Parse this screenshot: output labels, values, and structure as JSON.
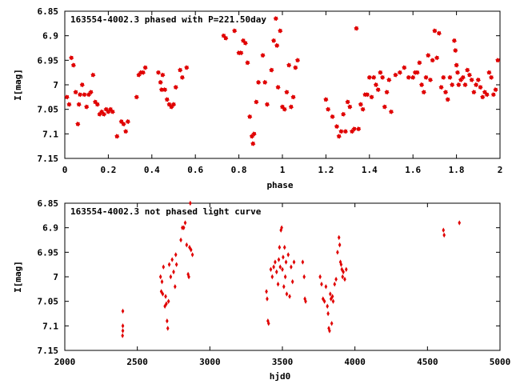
{
  "chart_data": [
    {
      "type": "scatter",
      "title": "163554-4002.3 phased with P=221.50day",
      "xlabel": "phase",
      "ylabel": "I[mag]",
      "xlim": [
        0,
        2
      ],
      "ylim": [
        7.15,
        6.85
      ],
      "y_inverted": true,
      "grid": false,
      "marker": "star",
      "color": "#e00000",
      "x_ticks": [
        "0",
        "0.2",
        "0.4",
        "0.6",
        "0.8",
        "1",
        "1.2",
        "1.4",
        "1.6",
        "1.8",
        "2"
      ],
      "y_ticks": [
        "6.85",
        "6.9",
        "6.95",
        "7",
        "7.05",
        "7.1",
        "7.15"
      ],
      "x_tick_values": [
        0,
        0.2,
        0.4,
        0.6,
        0.8,
        1.0,
        1.2,
        1.4,
        1.6,
        1.8,
        2.0
      ],
      "y_tick_values": [
        6.85,
        6.9,
        6.95,
        7.0,
        7.05,
        7.1,
        7.15
      ],
      "points": [
        [
          0.01,
          7.025
        ],
        [
          0.02,
          7.04
        ],
        [
          0.03,
          6.945
        ],
        [
          0.04,
          6.96
        ],
        [
          0.05,
          7.015
        ],
        [
          0.06,
          7.08
        ],
        [
          0.065,
          7.04
        ],
        [
          0.07,
          7.02
        ],
        [
          0.08,
          7.0
        ],
        [
          0.09,
          7.02
        ],
        [
          0.1,
          7.045
        ],
        [
          0.11,
          7.02
        ],
        [
          0.12,
          7.015
        ],
        [
          0.13,
          6.98
        ],
        [
          0.14,
          7.035
        ],
        [
          0.15,
          7.04
        ],
        [
          0.16,
          7.06
        ],
        [
          0.17,
          7.055
        ],
        [
          0.18,
          7.06
        ],
        [
          0.19,
          7.05
        ],
        [
          0.2,
          7.055
        ],
        [
          0.21,
          7.05
        ],
        [
          0.22,
          7.055
        ],
        [
          0.24,
          7.105
        ],
        [
          0.26,
          7.075
        ],
        [
          0.27,
          7.08
        ],
        [
          0.28,
          7.095
        ],
        [
          0.29,
          7.075
        ],
        [
          0.33,
          7.025
        ],
        [
          0.34,
          6.98
        ],
        [
          0.35,
          6.975
        ],
        [
          0.36,
          6.975
        ],
        [
          0.37,
          6.965
        ],
        [
          0.43,
          6.975
        ],
        [
          0.44,
          6.995
        ],
        [
          0.445,
          7.01
        ],
        [
          0.45,
          6.98
        ],
        [
          0.46,
          7.01
        ],
        [
          0.47,
          7.03
        ],
        [
          0.48,
          7.04
        ],
        [
          0.49,
          7.045
        ],
        [
          0.5,
          7.04
        ],
        [
          0.51,
          7.005
        ],
        [
          0.53,
          6.97
        ],
        [
          0.54,
          6.985
        ],
        [
          0.56,
          6.965
        ],
        [
          0.73,
          6.9
        ],
        [
          0.74,
          6.905
        ],
        [
          0.78,
          6.89
        ],
        [
          0.8,
          6.935
        ],
        [
          0.81,
          6.935
        ],
        [
          0.82,
          6.91
        ],
        [
          0.83,
          6.915
        ],
        [
          0.84,
          6.955
        ],
        [
          0.85,
          7.065
        ],
        [
          0.86,
          7.105
        ],
        [
          0.865,
          7.12
        ],
        [
          0.87,
          7.1
        ],
        [
          0.88,
          7.035
        ],
        [
          0.89,
          6.995
        ],
        [
          0.91,
          6.94
        ],
        [
          0.92,
          6.995
        ],
        [
          0.93,
          7.04
        ],
        [
          0.95,
          6.97
        ],
        [
          0.96,
          6.91
        ],
        [
          0.97,
          6.865
        ],
        [
          0.975,
          6.92
        ],
        [
          0.98,
          7.005
        ],
        [
          0.99,
          6.89
        ],
        [
          1.0,
          7.045
        ],
        [
          1.01,
          7.05
        ],
        [
          1.02,
          7.015
        ],
        [
          1.03,
          6.96
        ],
        [
          1.04,
          7.045
        ],
        [
          1.05,
          7.025
        ],
        [
          1.06,
          6.965
        ],
        [
          1.07,
          6.95
        ],
        [
          1.2,
          7.03
        ],
        [
          1.21,
          7.05
        ],
        [
          1.23,
          7.065
        ],
        [
          1.25,
          7.085
        ],
        [
          1.26,
          7.105
        ],
        [
          1.27,
          7.095
        ],
        [
          1.28,
          7.06
        ],
        [
          1.29,
          7.095
        ],
        [
          1.3,
          7.035
        ],
        [
          1.31,
          7.045
        ],
        [
          1.32,
          7.095
        ],
        [
          1.33,
          7.09
        ],
        [
          1.34,
          6.885
        ],
        [
          1.35,
          7.09
        ],
        [
          1.36,
          7.04
        ],
        [
          1.37,
          7.05
        ],
        [
          1.38,
          7.02
        ],
        [
          1.39,
          7.02
        ],
        [
          1.4,
          6.985
        ],
        [
          1.41,
          7.025
        ],
        [
          1.42,
          6.985
        ],
        [
          1.43,
          7.0
        ],
        [
          1.44,
          7.01
        ],
        [
          1.45,
          6.975
        ],
        [
          1.46,
          6.985
        ],
        [
          1.47,
          7.045
        ],
        [
          1.48,
          7.015
        ],
        [
          1.49,
          6.99
        ],
        [
          1.5,
          7.055
        ],
        [
          1.52,
          6.98
        ],
        [
          1.54,
          6.975
        ],
        [
          1.56,
          6.965
        ],
        [
          1.58,
          6.985
        ],
        [
          1.6,
          6.985
        ],
        [
          1.61,
          6.975
        ],
        [
          1.62,
          6.975
        ],
        [
          1.63,
          6.955
        ],
        [
          1.64,
          7.0
        ],
        [
          1.65,
          7.015
        ],
        [
          1.66,
          6.985
        ],
        [
          1.67,
          6.94
        ],
        [
          1.68,
          6.99
        ],
        [
          1.69,
          6.95
        ],
        [
          1.7,
          6.89
        ],
        [
          1.71,
          6.945
        ],
        [
          1.72,
          6.895
        ],
        [
          1.73,
          7.005
        ],
        [
          1.74,
          6.985
        ],
        [
          1.75,
          7.015
        ],
        [
          1.76,
          7.03
        ],
        [
          1.77,
          6.985
        ],
        [
          1.78,
          7.0
        ],
        [
          1.79,
          6.91
        ],
        [
          1.795,
          6.93
        ],
        [
          1.8,
          6.96
        ],
        [
          1.805,
          6.975
        ],
        [
          1.81,
          7.0
        ],
        [
          1.82,
          6.99
        ],
        [
          1.83,
          6.985
        ],
        [
          1.84,
          7.0
        ],
        [
          1.85,
          6.97
        ],
        [
          1.86,
          6.98
        ],
        [
          1.87,
          6.99
        ],
        [
          1.88,
          7.015
        ],
        [
          1.89,
          7.0
        ],
        [
          1.9,
          6.99
        ],
        [
          1.91,
          7.005
        ],
        [
          1.92,
          7.025
        ],
        [
          1.93,
          7.015
        ],
        [
          1.94,
          7.02
        ],
        [
          1.95,
          6.975
        ],
        [
          1.96,
          6.985
        ],
        [
          1.97,
          7.02
        ],
        [
          1.98,
          7.01
        ],
        [
          1.99,
          6.95
        ]
      ]
    },
    {
      "type": "scatter",
      "title": "163554-4002.3 not phased light curve",
      "xlabel": "hjd0",
      "ylabel": "I[mag]",
      "xlim": [
        2000,
        5000
      ],
      "ylim": [
        7.15,
        6.85
      ],
      "y_inverted": true,
      "grid": false,
      "marker": "diamond",
      "color": "#e00000",
      "x_ticks": [
        "2000",
        "2500",
        "3000",
        "3500",
        "4000",
        "4500",
        "5000"
      ],
      "y_ticks": [
        "6.85",
        "6.9",
        "6.95",
        "7",
        "7.05",
        "7.1",
        "7.15"
      ],
      "x_tick_values": [
        2000,
        2500,
        3000,
        3500,
        4000,
        4500,
        5000
      ],
      "y_tick_values": [
        6.85,
        6.9,
        6.95,
        7.0,
        7.05,
        7.1,
        7.15
      ],
      "points": [
        [
          2400,
          7.07
        ],
        [
          2400,
          7.1
        ],
        [
          2400,
          7.11
        ],
        [
          2398,
          7.12
        ],
        [
          2660,
          7.0
        ],
        [
          2665,
          7.03
        ],
        [
          2670,
          7.01
        ],
        [
          2675,
          7.035
        ],
        [
          2680,
          6.98
        ],
        [
          2690,
          7.06
        ],
        [
          2695,
          7.04
        ],
        [
          2700,
          7.055
        ],
        [
          2705,
          7.09
        ],
        [
          2710,
          7.105
        ],
        [
          2715,
          7.05
        ],
        [
          2720,
          6.975
        ],
        [
          2730,
          7.0
        ],
        [
          2740,
          6.965
        ],
        [
          2750,
          6.99
        ],
        [
          2760,
          7.02
        ],
        [
          2765,
          6.955
        ],
        [
          2770,
          6.975
        ],
        [
          2800,
          6.925
        ],
        [
          2810,
          6.9
        ],
        [
          2820,
          6.9
        ],
        [
          2830,
          6.89
        ],
        [
          2840,
          6.935
        ],
        [
          2850,
          6.995
        ],
        [
          2855,
          7.0
        ],
        [
          2860,
          6.94
        ],
        [
          2865,
          6.85
        ],
        [
          2870,
          6.945
        ],
        [
          2880,
          6.955
        ],
        [
          3390,
          7.03
        ],
        [
          3395,
          7.045
        ],
        [
          3400,
          7.09
        ],
        [
          3405,
          7.095
        ],
        [
          3420,
          6.985
        ],
        [
          3430,
          7.0
        ],
        [
          3440,
          6.98
        ],
        [
          3450,
          6.97
        ],
        [
          3460,
          6.99
        ],
        [
          3470,
          7.015
        ],
        [
          3475,
          6.965
        ],
        [
          3480,
          6.94
        ],
        [
          3485,
          6.98
        ],
        [
          3490,
          6.905
        ],
        [
          3495,
          6.9
        ],
        [
          3500,
          6.985
        ],
        [
          3505,
          6.96
        ],
        [
          3510,
          7.02
        ],
        [
          3515,
          6.94
        ],
        [
          3520,
          7.0
        ],
        [
          3525,
          6.97
        ],
        [
          3530,
          7.035
        ],
        [
          3540,
          6.955
        ],
        [
          3550,
          7.04
        ],
        [
          3560,
          6.98
        ],
        [
          3570,
          7.01
        ],
        [
          3580,
          6.97
        ],
        [
          3640,
          6.97
        ],
        [
          3650,
          7.0
        ],
        [
          3655,
          7.045
        ],
        [
          3660,
          7.05
        ],
        [
          3760,
          7.0
        ],
        [
          3770,
          7.015
        ],
        [
          3780,
          7.045
        ],
        [
          3790,
          7.05
        ],
        [
          3800,
          7.02
        ],
        [
          3810,
          7.06
        ],
        [
          3815,
          7.075
        ],
        [
          3820,
          7.105
        ],
        [
          3825,
          7.11
        ],
        [
          3830,
          7.035
        ],
        [
          3835,
          7.045
        ],
        [
          3840,
          7.095
        ],
        [
          3845,
          7.04
        ],
        [
          3850,
          7.05
        ],
        [
          3860,
          7.015
        ],
        [
          3870,
          7.005
        ],
        [
          3880,
          6.95
        ],
        [
          3890,
          6.92
        ],
        [
          3895,
          6.935
        ],
        [
          3900,
          6.97
        ],
        [
          3905,
          6.975
        ],
        [
          3910,
          6.985
        ],
        [
          3915,
          7.0
        ],
        [
          3920,
          6.99
        ],
        [
          3930,
          7.005
        ],
        [
          3940,
          6.985
        ],
        [
          4610,
          6.905
        ],
        [
          4615,
          6.915
        ],
        [
          4720,
          6.89
        ]
      ]
    }
  ]
}
